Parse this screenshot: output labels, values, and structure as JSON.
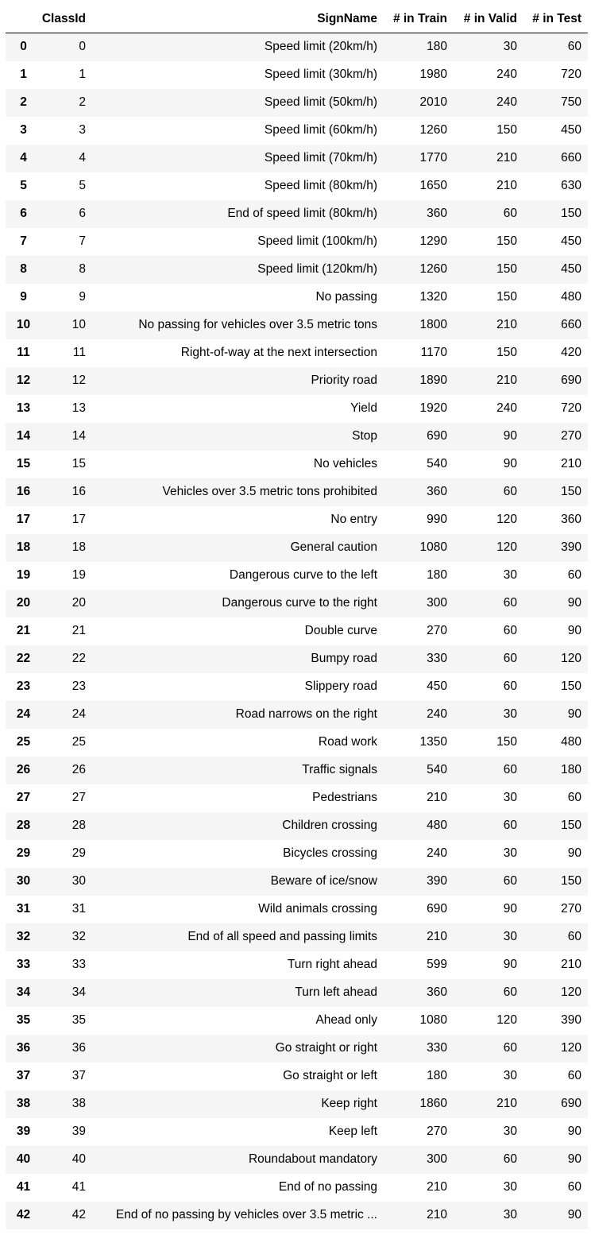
{
  "table": {
    "columns": [
      "",
      "ClassId",
      "SignName",
      "# in Train",
      "# in Valid",
      "# in Test"
    ],
    "rows": [
      {
        "index": "0",
        "class_id": "0",
        "sign_name": "Speed limit (20km/h)",
        "train": "180",
        "valid": "30",
        "test": "60"
      },
      {
        "index": "1",
        "class_id": "1",
        "sign_name": "Speed limit (30km/h)",
        "train": "1980",
        "valid": "240",
        "test": "720"
      },
      {
        "index": "2",
        "class_id": "2",
        "sign_name": "Speed limit (50km/h)",
        "train": "2010",
        "valid": "240",
        "test": "750"
      },
      {
        "index": "3",
        "class_id": "3",
        "sign_name": "Speed limit (60km/h)",
        "train": "1260",
        "valid": "150",
        "test": "450"
      },
      {
        "index": "4",
        "class_id": "4",
        "sign_name": "Speed limit (70km/h)",
        "train": "1770",
        "valid": "210",
        "test": "660"
      },
      {
        "index": "5",
        "class_id": "5",
        "sign_name": "Speed limit (80km/h)",
        "train": "1650",
        "valid": "210",
        "test": "630"
      },
      {
        "index": "6",
        "class_id": "6",
        "sign_name": "End of speed limit (80km/h)",
        "train": "360",
        "valid": "60",
        "test": "150"
      },
      {
        "index": "7",
        "class_id": "7",
        "sign_name": "Speed limit (100km/h)",
        "train": "1290",
        "valid": "150",
        "test": "450"
      },
      {
        "index": "8",
        "class_id": "8",
        "sign_name": "Speed limit (120km/h)",
        "train": "1260",
        "valid": "150",
        "test": "450"
      },
      {
        "index": "9",
        "class_id": "9",
        "sign_name": "No passing",
        "train": "1320",
        "valid": "150",
        "test": "480"
      },
      {
        "index": "10",
        "class_id": "10",
        "sign_name": "No passing for vehicles over 3.5 metric tons",
        "train": "1800",
        "valid": "210",
        "test": "660"
      },
      {
        "index": "11",
        "class_id": "11",
        "sign_name": "Right-of-way at the next intersection",
        "train": "1170",
        "valid": "150",
        "test": "420"
      },
      {
        "index": "12",
        "class_id": "12",
        "sign_name": "Priority road",
        "train": "1890",
        "valid": "210",
        "test": "690"
      },
      {
        "index": "13",
        "class_id": "13",
        "sign_name": "Yield",
        "train": "1920",
        "valid": "240",
        "test": "720"
      },
      {
        "index": "14",
        "class_id": "14",
        "sign_name": "Stop",
        "train": "690",
        "valid": "90",
        "test": "270"
      },
      {
        "index": "15",
        "class_id": "15",
        "sign_name": "No vehicles",
        "train": "540",
        "valid": "90",
        "test": "210"
      },
      {
        "index": "16",
        "class_id": "16",
        "sign_name": "Vehicles over 3.5 metric tons prohibited",
        "train": "360",
        "valid": "60",
        "test": "150"
      },
      {
        "index": "17",
        "class_id": "17",
        "sign_name": "No entry",
        "train": "990",
        "valid": "120",
        "test": "360"
      },
      {
        "index": "18",
        "class_id": "18",
        "sign_name": "General caution",
        "train": "1080",
        "valid": "120",
        "test": "390"
      },
      {
        "index": "19",
        "class_id": "19",
        "sign_name": "Dangerous curve to the left",
        "train": "180",
        "valid": "30",
        "test": "60"
      },
      {
        "index": "20",
        "class_id": "20",
        "sign_name": "Dangerous curve to the right",
        "train": "300",
        "valid": "60",
        "test": "90"
      },
      {
        "index": "21",
        "class_id": "21",
        "sign_name": "Double curve",
        "train": "270",
        "valid": "60",
        "test": "90"
      },
      {
        "index": "22",
        "class_id": "22",
        "sign_name": "Bumpy road",
        "train": "330",
        "valid": "60",
        "test": "120"
      },
      {
        "index": "23",
        "class_id": "23",
        "sign_name": "Slippery road",
        "train": "450",
        "valid": "60",
        "test": "150"
      },
      {
        "index": "24",
        "class_id": "24",
        "sign_name": "Road narrows on the right",
        "train": "240",
        "valid": "30",
        "test": "90"
      },
      {
        "index": "25",
        "class_id": "25",
        "sign_name": "Road work",
        "train": "1350",
        "valid": "150",
        "test": "480"
      },
      {
        "index": "26",
        "class_id": "26",
        "sign_name": "Traffic signals",
        "train": "540",
        "valid": "60",
        "test": "180"
      },
      {
        "index": "27",
        "class_id": "27",
        "sign_name": "Pedestrians",
        "train": "210",
        "valid": "30",
        "test": "60"
      },
      {
        "index": "28",
        "class_id": "28",
        "sign_name": "Children crossing",
        "train": "480",
        "valid": "60",
        "test": "150"
      },
      {
        "index": "29",
        "class_id": "29",
        "sign_name": "Bicycles crossing",
        "train": "240",
        "valid": "30",
        "test": "90"
      },
      {
        "index": "30",
        "class_id": "30",
        "sign_name": "Beware of ice/snow",
        "train": "390",
        "valid": "60",
        "test": "150"
      },
      {
        "index": "31",
        "class_id": "31",
        "sign_name": "Wild animals crossing",
        "train": "690",
        "valid": "90",
        "test": "270"
      },
      {
        "index": "32",
        "class_id": "32",
        "sign_name": "End of all speed and passing limits",
        "train": "210",
        "valid": "30",
        "test": "60"
      },
      {
        "index": "33",
        "class_id": "33",
        "sign_name": "Turn right ahead",
        "train": "599",
        "valid": "90",
        "test": "210"
      },
      {
        "index": "34",
        "class_id": "34",
        "sign_name": "Turn left ahead",
        "train": "360",
        "valid": "60",
        "test": "120"
      },
      {
        "index": "35",
        "class_id": "35",
        "sign_name": "Ahead only",
        "train": "1080",
        "valid": "120",
        "test": "390"
      },
      {
        "index": "36",
        "class_id": "36",
        "sign_name": "Go straight or right",
        "train": "330",
        "valid": "60",
        "test": "120"
      },
      {
        "index": "37",
        "class_id": "37",
        "sign_name": "Go straight or left",
        "train": "180",
        "valid": "30",
        "test": "60"
      },
      {
        "index": "38",
        "class_id": "38",
        "sign_name": "Keep right",
        "train": "1860",
        "valid": "210",
        "test": "690"
      },
      {
        "index": "39",
        "class_id": "39",
        "sign_name": "Keep left",
        "train": "270",
        "valid": "30",
        "test": "90"
      },
      {
        "index": "40",
        "class_id": "40",
        "sign_name": "Roundabout mandatory",
        "train": "300",
        "valid": "60",
        "test": "90"
      },
      {
        "index": "41",
        "class_id": "41",
        "sign_name": "End of no passing",
        "train": "210",
        "valid": "30",
        "test": "60"
      },
      {
        "index": "42",
        "class_id": "42",
        "sign_name": "End of no passing by vehicles over 3.5 metric ...",
        "train": "210",
        "valid": "30",
        "test": "90"
      }
    ]
  }
}
